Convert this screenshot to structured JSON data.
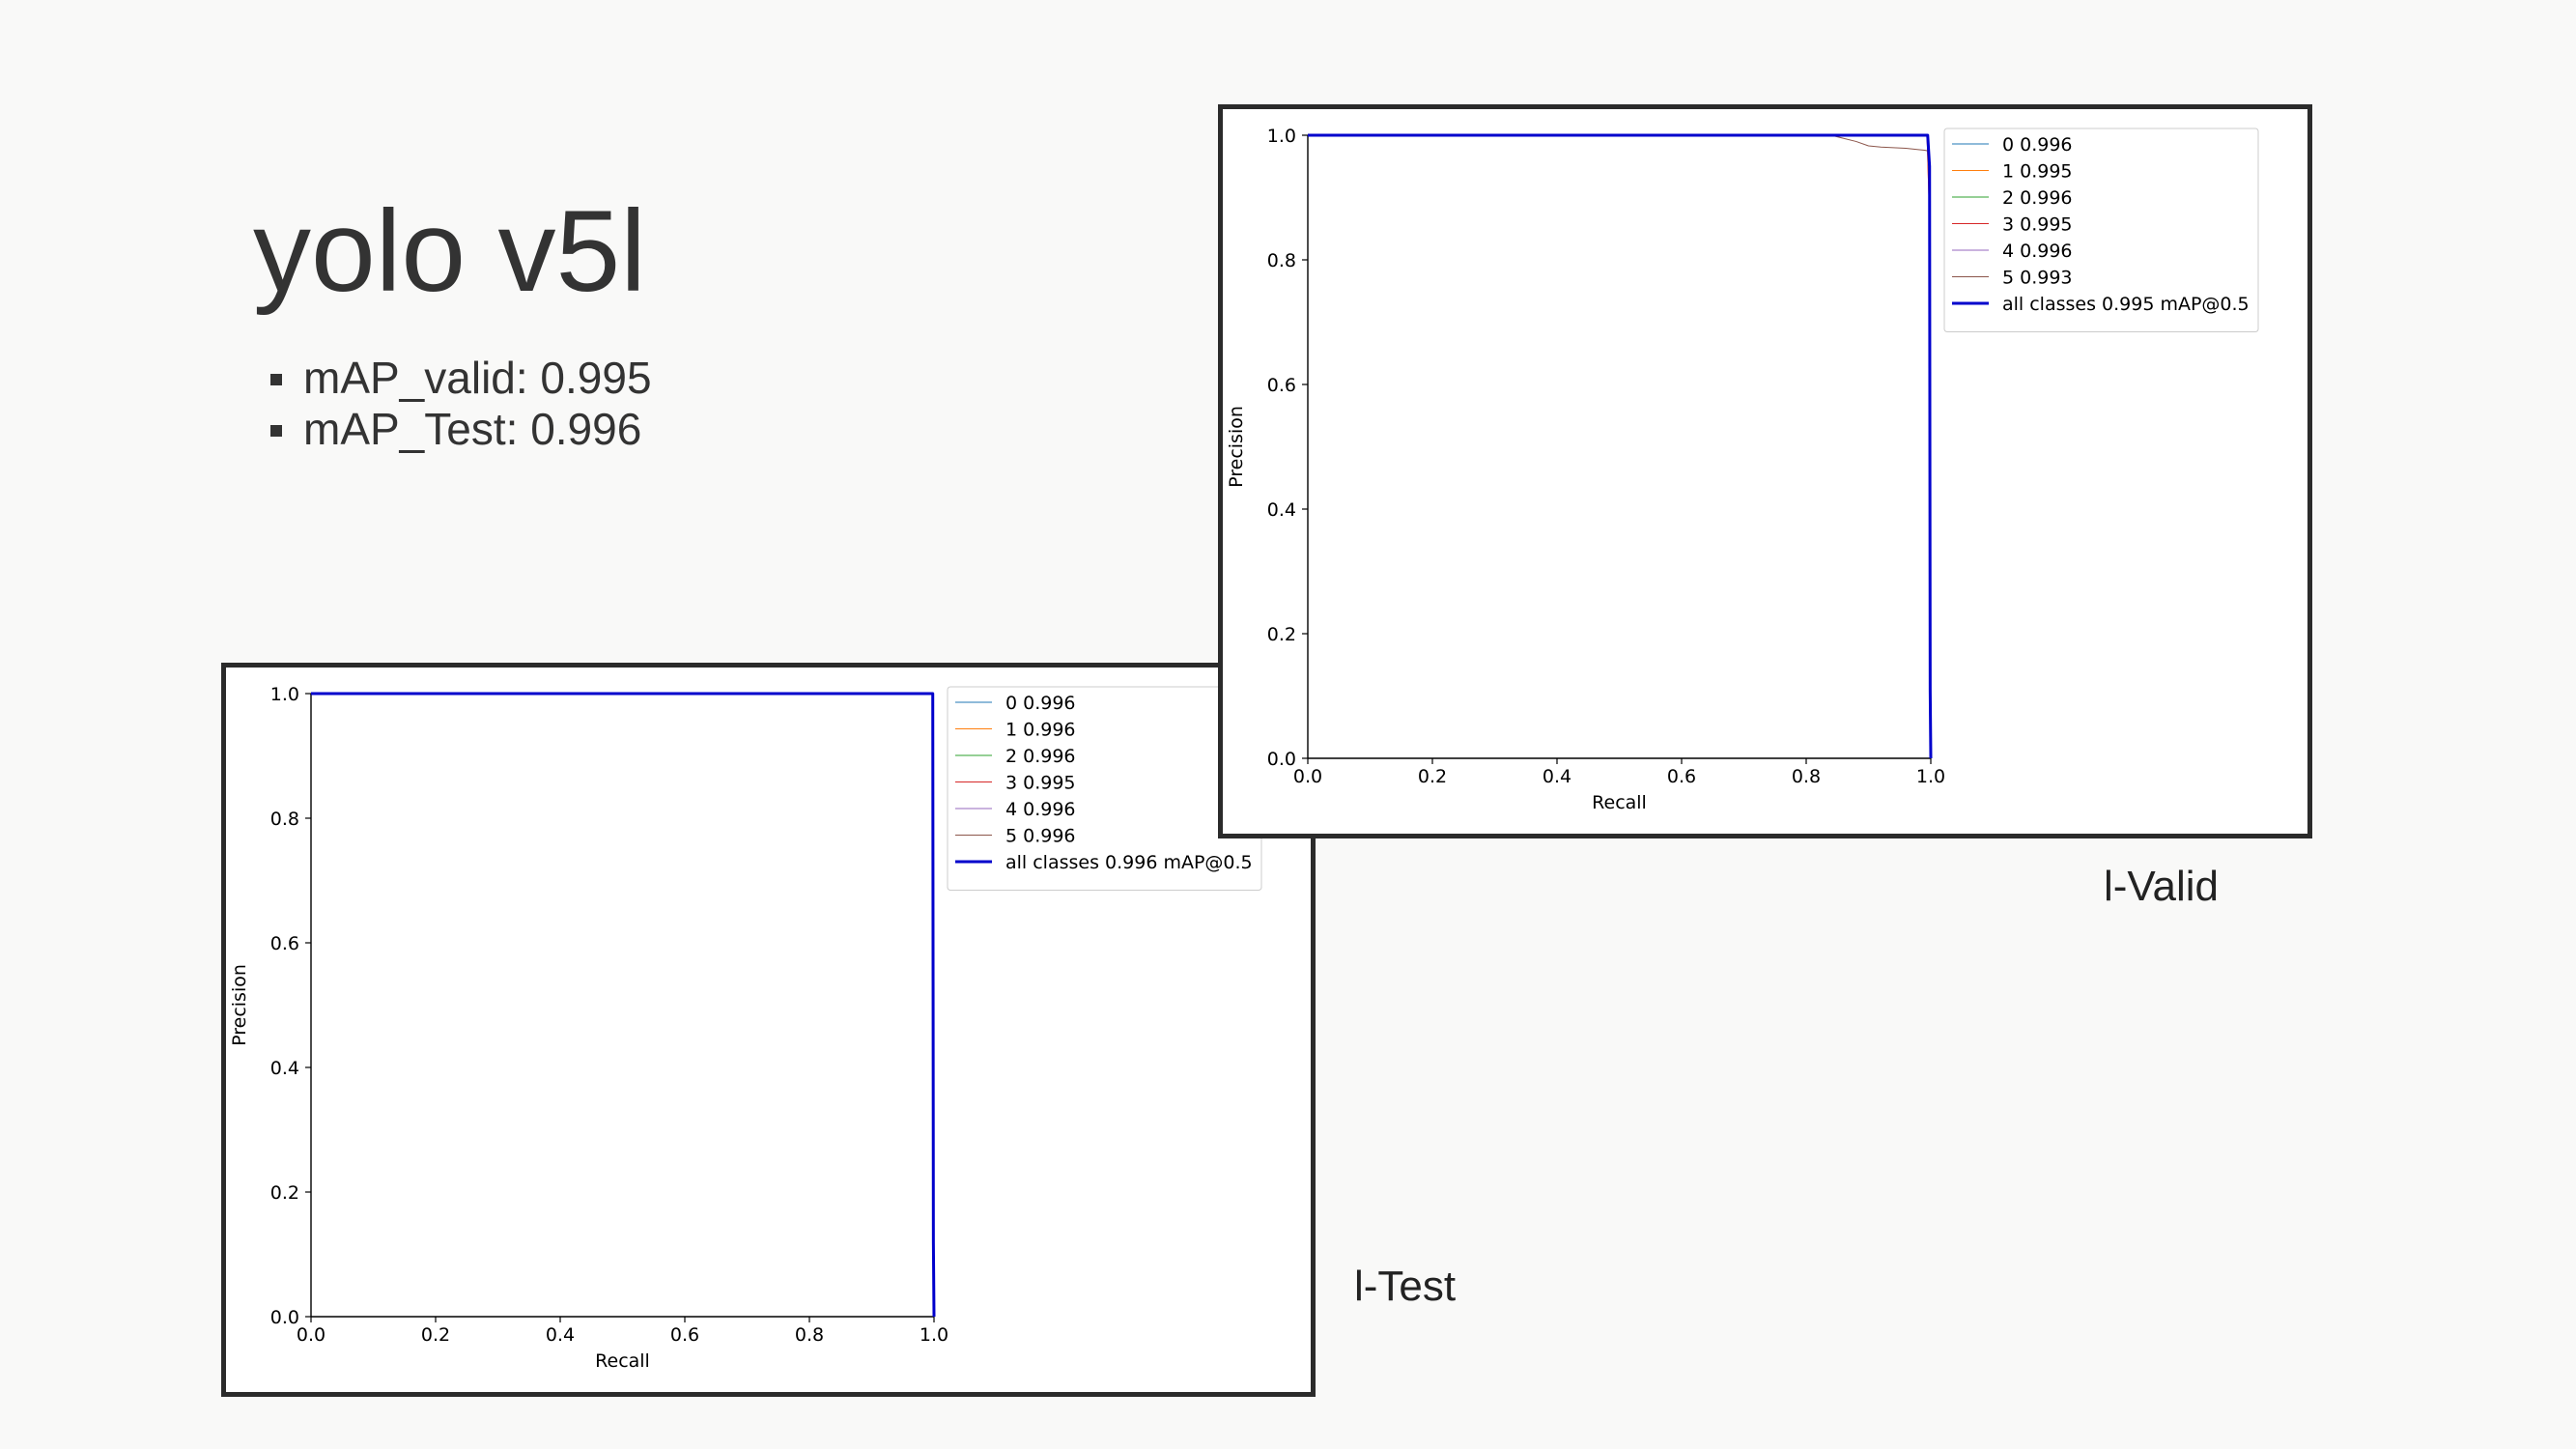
{
  "slide": {
    "title": "yolo v5l",
    "bullets": [
      "mAP_valid: 0.995",
      "mAP_Test: 0.996"
    ]
  },
  "captions": {
    "valid": "l-Valid",
    "test": "l-Test"
  },
  "chart_data": [
    {
      "id": "valid",
      "type": "line",
      "title": "",
      "xlabel": "Recall",
      "ylabel": "Precision",
      "xlim": [
        0,
        1
      ],
      "ylim": [
        0,
        1
      ],
      "xticks": [
        "0.0",
        "0.2",
        "0.4",
        "0.6",
        "0.8",
        "1.0"
      ],
      "yticks": [
        "0.0",
        "0.2",
        "0.4",
        "0.6",
        "0.8",
        "1.0"
      ],
      "grid": false,
      "legend_position": "top-right",
      "series": [
        {
          "name": "0 0.996",
          "color": "#1f77b4",
          "width": 1,
          "x": [
            0,
            0.995,
            0.998,
            1.0
          ],
          "y": [
            1.0,
            1.0,
            0.95,
            0.0
          ]
        },
        {
          "name": "1 0.995",
          "color": "#ff7f0e",
          "width": 1,
          "x": [
            0,
            0.994,
            0.997,
            1.0
          ],
          "y": [
            1.0,
            1.0,
            0.9,
            0.0
          ]
        },
        {
          "name": "2 0.996",
          "color": "#2ca02c",
          "width": 1,
          "x": [
            0,
            0.995,
            0.998,
            1.0
          ],
          "y": [
            1.0,
            1.0,
            0.95,
            0.0
          ]
        },
        {
          "name": "3 0.995",
          "color": "#d62728",
          "width": 1,
          "x": [
            0,
            0.994,
            0.997,
            1.0
          ],
          "y": [
            1.0,
            1.0,
            0.9,
            0.0
          ]
        },
        {
          "name": "4 0.996",
          "color": "#9467bd",
          "width": 1,
          "x": [
            0,
            0.995,
            0.998,
            1.0
          ],
          "y": [
            1.0,
            1.0,
            0.95,
            0.0
          ]
        },
        {
          "name": "5 0.993",
          "color": "#8c564b",
          "width": 1,
          "x": [
            0,
            0.84,
            0.86,
            0.88,
            0.9,
            0.92,
            0.94,
            0.96,
            0.98,
            0.99,
            0.995,
            0.998,
            1.0
          ],
          "y": [
            1.0,
            1.0,
            0.995,
            0.99,
            0.983,
            0.981,
            0.98,
            0.979,
            0.977,
            0.976,
            0.975,
            0.9,
            0.0
          ]
        },
        {
          "name": "all classes 0.995 mAP@0.5",
          "color": "#0000cc",
          "width": 3,
          "x": [
            0,
            0.995,
            0.998,
            0.999,
            1.0
          ],
          "y": [
            1.0,
            1.0,
            0.95,
            0.11,
            0.0
          ]
        }
      ]
    },
    {
      "id": "test",
      "type": "line",
      "title": "",
      "xlabel": "Recall",
      "ylabel": "Precision",
      "xlim": [
        0,
        1
      ],
      "ylim": [
        0,
        1
      ],
      "xticks": [
        "0.0",
        "0.2",
        "0.4",
        "0.6",
        "0.8",
        "1.0"
      ],
      "yticks": [
        "0.0",
        "0.2",
        "0.4",
        "0.6",
        "0.8",
        "1.0"
      ],
      "grid": false,
      "legend_position": "top-right",
      "series": [
        {
          "name": "0 0.996",
          "color": "#1f77b4",
          "width": 1,
          "x": [
            0,
            0.998,
            1.0
          ],
          "y": [
            1.0,
            1.0,
            0.0
          ]
        },
        {
          "name": "1 0.996",
          "color": "#ff7f0e",
          "width": 1,
          "x": [
            0,
            0.998,
            1.0
          ],
          "y": [
            1.0,
            1.0,
            0.0
          ]
        },
        {
          "name": "2 0.996",
          "color": "#2ca02c",
          "width": 1,
          "x": [
            0,
            0.998,
            1.0
          ],
          "y": [
            1.0,
            1.0,
            0.0
          ]
        },
        {
          "name": "3 0.995",
          "color": "#d62728",
          "width": 1,
          "x": [
            0,
            0.997,
            1.0
          ],
          "y": [
            1.0,
            1.0,
            0.0
          ]
        },
        {
          "name": "4 0.996",
          "color": "#9467bd",
          "width": 1,
          "x": [
            0,
            0.998,
            1.0
          ],
          "y": [
            1.0,
            1.0,
            0.0
          ]
        },
        {
          "name": "5 0.996",
          "color": "#8c564b",
          "width": 1,
          "x": [
            0,
            0.998,
            1.0
          ],
          "y": [
            1.0,
            1.0,
            0.0
          ]
        },
        {
          "name": "all classes 0.996 mAP@0.5",
          "color": "#0000cc",
          "width": 3,
          "x": [
            0,
            0.998,
            0.999,
            1.0
          ],
          "y": [
            1.0,
            1.0,
            0.12,
            0.0
          ]
        }
      ]
    }
  ]
}
